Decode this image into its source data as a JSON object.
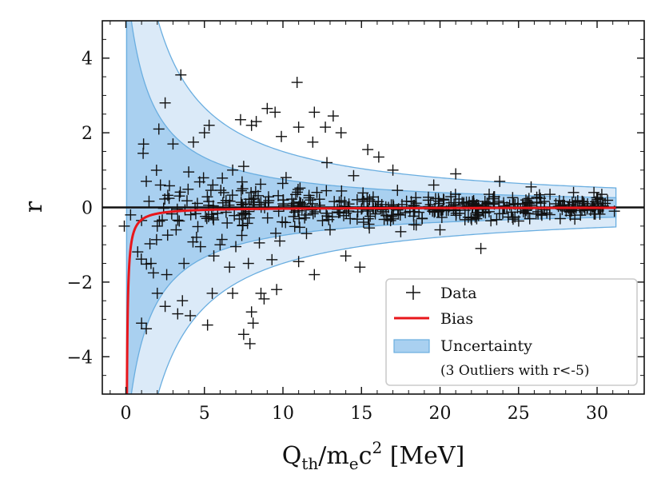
{
  "chart_data": {
    "type": "scatter",
    "title": "",
    "xlabel": "Q",
    "xlabel_sub1": "th",
    "xlabel_mid": "/m",
    "xlabel_sub2": "e",
    "xlabel_c": "c",
    "xlabel_sup": "2",
    "xlabel_unit": "[MeV]",
    "ylabel": "r",
    "xlim": [
      -1.5,
      33
    ],
    "ylim": [
      -5,
      5
    ],
    "x_ticks": [
      0,
      5,
      10,
      15,
      20,
      25,
      30
    ],
    "x_tick_labels": [
      "0",
      "5",
      "10",
      "15",
      "20",
      "25",
      "30"
    ],
    "y_ticks": [
      -4,
      -2,
      0,
      2,
      4
    ],
    "y_tick_labels": [
      "−4",
      "−2",
      "0",
      "2",
      "4"
    ],
    "zero_line": 0,
    "band_x_range": [
      0.05,
      31.2
    ],
    "inner_band_half_width_coeff": 8.5,
    "outer_band_half_width_coeff": 17,
    "bias_curve": {
      "asymptote": 0,
      "amplitude": -0.33,
      "x_start": 0.05
    },
    "colors": {
      "data": "#111111",
      "bias": "#e8161b",
      "band_fill": "#a9d0f0",
      "band_outer_fill": "#dbeaf8",
      "band_edge": "#6aaee0",
      "axis": "#111111"
    },
    "series": [
      {
        "name": "Data",
        "marker": "+",
        "points": [
          [
            3.5,
            3.55
          ],
          [
            10.9,
            3.35
          ],
          [
            2.5,
            2.8
          ],
          [
            9.0,
            2.65
          ],
          [
            9.5,
            2.55
          ],
          [
            12.0,
            2.55
          ],
          [
            13.2,
            2.45
          ],
          [
            7.3,
            2.35
          ],
          [
            8.3,
            2.3
          ],
          [
            5.3,
            2.2
          ],
          [
            8.0,
            2.2
          ],
          [
            2.1,
            2.1
          ],
          [
            11.0,
            2.15
          ],
          [
            12.7,
            2.15
          ],
          [
            5.0,
            2.0
          ],
          [
            13.7,
            2.0
          ],
          [
            1.1,
            1.45
          ],
          [
            3.0,
            1.7
          ],
          [
            4.3,
            1.75
          ],
          [
            11.9,
            1.75
          ],
          [
            9.9,
            1.9
          ],
          [
            15.4,
            1.55
          ],
          [
            16.1,
            1.35
          ],
          [
            12.8,
            1.2
          ],
          [
            7.5,
            1.1
          ],
          [
            6.8,
            1.0
          ],
          [
            17.0,
            1.0
          ],
          [
            21.0,
            0.9
          ],
          [
            14.5,
            0.85
          ],
          [
            10.2,
            0.8
          ],
          [
            4.0,
            0.95
          ],
          [
            2.2,
            0.6
          ],
          [
            1.3,
            0.7
          ],
          [
            19.6,
            0.6
          ],
          [
            23.8,
            0.7
          ],
          [
            25.8,
            0.55
          ],
          [
            28.5,
            0.4
          ],
          [
            31.1,
            -0.1
          ],
          [
            29.8,
            0.4
          ],
          [
            27.0,
            0.35
          ],
          [
            30.3,
            0.35
          ],
          [
            -0.1,
            -0.5
          ],
          [
            0.3,
            -0.2
          ],
          [
            1.0,
            -0.35
          ],
          [
            2.0,
            -0.5
          ],
          [
            3.2,
            -0.6
          ],
          [
            4.5,
            -0.8
          ],
          [
            6.0,
            -1.0
          ],
          [
            7.0,
            -1.05
          ],
          [
            8.5,
            -0.95
          ],
          [
            9.8,
            -0.9
          ],
          [
            11.5,
            -0.7
          ],
          [
            13.0,
            -0.6
          ],
          [
            15.5,
            -0.55
          ],
          [
            17.5,
            -0.65
          ],
          [
            22.6,
            -1.1
          ],
          [
            20.0,
            -0.6
          ],
          [
            1.6,
            -1.5
          ],
          [
            2.6,
            -1.8
          ],
          [
            3.7,
            -1.5
          ],
          [
            5.6,
            -1.3
          ],
          [
            6.6,
            -1.6
          ],
          [
            7.8,
            -1.5
          ],
          [
            9.3,
            -1.4
          ],
          [
            11.0,
            -1.45
          ],
          [
            14.0,
            -1.3
          ],
          [
            14.9,
            -1.6
          ],
          [
            12.0,
            -1.8
          ],
          [
            2.0,
            -2.3
          ],
          [
            3.6,
            -2.5
          ],
          [
            5.5,
            -2.3
          ],
          [
            6.8,
            -2.3
          ],
          [
            8.6,
            -2.3
          ],
          [
            9.6,
            -2.2
          ],
          [
            2.5,
            -2.65
          ],
          [
            3.3,
            -2.85
          ],
          [
            4.1,
            -2.9
          ],
          [
            8.0,
            -2.8
          ],
          [
            8.8,
            -2.45
          ],
          [
            5.2,
            -3.15
          ],
          [
            1.0,
            -3.1
          ],
          [
            1.3,
            -3.25
          ],
          [
            7.5,
            -3.4
          ],
          [
            8.1,
            -3.1
          ],
          [
            7.9,
            -3.65
          ]
        ]
      },
      {
        "name": "Bias"
      },
      {
        "name": "Uncertainty"
      }
    ],
    "legend": {
      "position": "lower right",
      "entries": [
        "Data",
        "Bias",
        "Uncertainty"
      ],
      "note": "(3 Outliers with r<-5)"
    }
  }
}
